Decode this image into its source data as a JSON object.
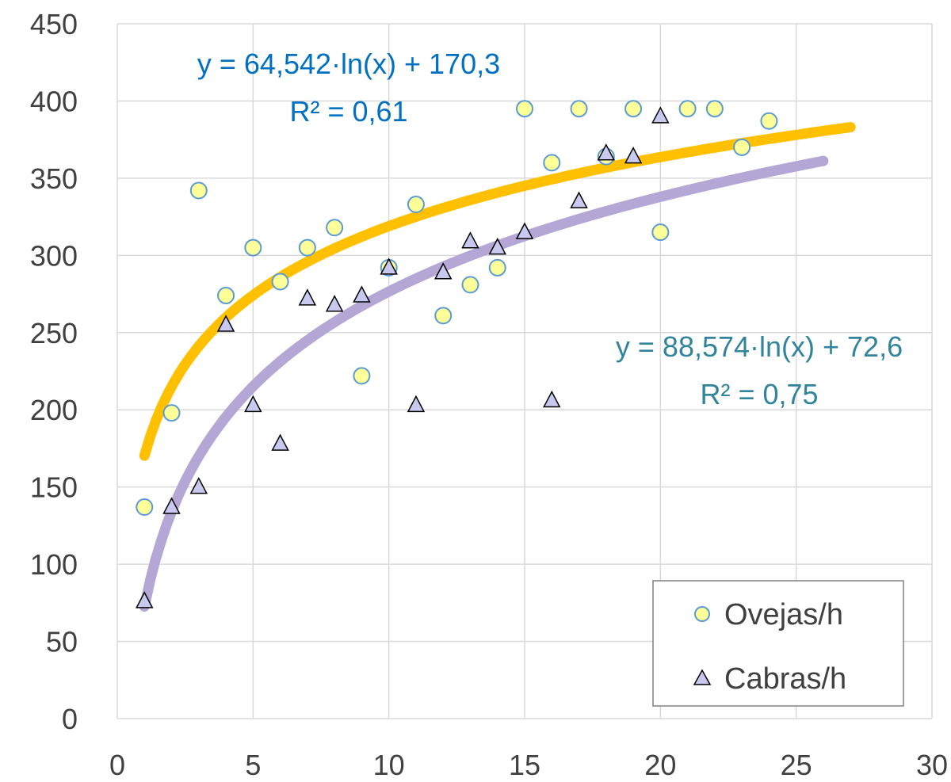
{
  "chart_data": {
    "type": "scatter",
    "xlim": [
      0,
      30
    ],
    "ylim": [
      0,
      450
    ],
    "x_ticks": [
      0,
      5,
      10,
      15,
      20,
      25,
      30
    ],
    "y_ticks": [
      0,
      50,
      100,
      150,
      200,
      250,
      300,
      350,
      400,
      450
    ],
    "grid": true,
    "legend_position": "bottom-right",
    "series": [
      {
        "name": "Ovejas/h",
        "marker": "circle",
        "fill": "#FFFF99",
        "stroke": "#5B9BD5",
        "points": [
          [
            1,
            137
          ],
          [
            2,
            198
          ],
          [
            3,
            342
          ],
          [
            4,
            274
          ],
          [
            5,
            305
          ],
          [
            6,
            283
          ],
          [
            7,
            305
          ],
          [
            8,
            318
          ],
          [
            9,
            222
          ],
          [
            10,
            292
          ],
          [
            11,
            333
          ],
          [
            12,
            261
          ],
          [
            13,
            281
          ],
          [
            14,
            292
          ],
          [
            15,
            395
          ],
          [
            16,
            360
          ],
          [
            17,
            395
          ],
          [
            18,
            364
          ],
          [
            19,
            395
          ],
          [
            20,
            315
          ],
          [
            21,
            395
          ],
          [
            22,
            395
          ],
          [
            23,
            370
          ],
          [
            24,
            387
          ]
        ]
      },
      {
        "name": "Cabras/h",
        "marker": "triangle",
        "fill": "#C9C9F0",
        "stroke": "#000000",
        "points": [
          [
            1,
            76
          ],
          [
            2,
            137
          ],
          [
            3,
            150
          ],
          [
            4,
            255
          ],
          [
            5,
            203
          ],
          [
            6,
            178
          ],
          [
            7,
            272
          ],
          [
            8,
            268
          ],
          [
            9,
            274
          ],
          [
            10,
            292
          ],
          [
            11,
            203
          ],
          [
            12,
            289
          ],
          [
            13,
            309
          ],
          [
            14,
            305
          ],
          [
            15,
            315
          ],
          [
            16,
            206
          ],
          [
            17,
            335
          ],
          [
            18,
            366
          ],
          [
            19,
            364
          ],
          [
            20,
            390
          ]
        ]
      }
    ],
    "trendlines": [
      {
        "series": "Ovejas/h",
        "type": "logarithmic",
        "a": 64.542,
        "b": 170.3,
        "x_range": [
          1,
          27
        ],
        "color": "#FFC000",
        "equation": "y = 64,542·ln(x) + 170,3",
        "r2": "R² = 0,61",
        "label_color": "#0070C0"
      },
      {
        "series": "Cabras/h",
        "type": "logarithmic",
        "a": 88.574,
        "b": 72.6,
        "x_range": [
          1,
          26
        ],
        "color": "#B4A7D6",
        "equation": "y = 88,574·ln(x) + 72,6",
        "r2": "R² = 0,75",
        "label_color": "#31849B"
      }
    ]
  }
}
